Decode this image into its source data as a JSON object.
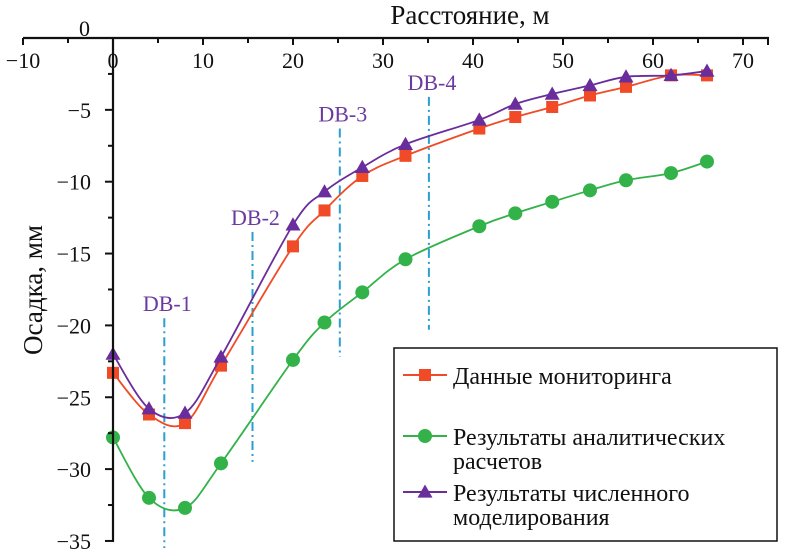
{
  "chart_data": {
    "type": "line",
    "title": "",
    "xlabel": "Расстояние, м",
    "ylabel": "Осадка, мм",
    "xlim": [
      -10,
      75
    ],
    "ylim": [
      -35,
      0
    ],
    "x_ticks": [
      -10,
      0,
      10,
      20,
      30,
      40,
      50,
      60,
      70
    ],
    "x_tick_labels": [
      "−10",
      "0",
      "10",
      "20",
      "30",
      "40",
      "50",
      "60",
      "70"
    ],
    "y_ticks": [
      0,
      -5,
      -10,
      -15,
      -20,
      -25,
      -30,
      -35
    ],
    "y_tick_labels": [
      "0",
      "−5",
      "−10",
      "−15",
      "−20",
      "−25",
      "−30",
      "−35"
    ],
    "grid": false,
    "legend_position": "bottom-right",
    "x": [
      0,
      4,
      8,
      12,
      20,
      23.5,
      27.7,
      32.5,
      40.7,
      44.7,
      48.8,
      53,
      57,
      62,
      66
    ],
    "series": [
      {
        "name": "Данные мониторинга",
        "color": "#f04a26",
        "marker": "square",
        "values": [
          -23.3,
          -26.2,
          -26.8,
          -22.8,
          -14.5,
          -12.0,
          -9.6,
          -8.2,
          -6.3,
          -5.5,
          -4.8,
          -4.0,
          -3.4,
          -2.6,
          -2.6
        ]
      },
      {
        "name": "Результаты аналитических расчетов",
        "legend_lines": [
          "Результаты аналитических",
          "расчетов"
        ],
        "color": "#33b24a",
        "marker": "circle",
        "values": [
          -27.8,
          -32.0,
          -32.7,
          -29.6,
          -22.4,
          -19.8,
          -17.7,
          -15.4,
          -13.1,
          -12.2,
          -11.4,
          -10.6,
          -9.9,
          -9.4,
          -8.6
        ]
      },
      {
        "name": "Результаты численного моделирования",
        "legend_lines": [
          "Результаты численного",
          "моделирования"
        ],
        "color": "#6a2d9c",
        "marker": "triangle",
        "values": [
          -22.0,
          -25.8,
          -26.1,
          -22.2,
          -13.0,
          -10.7,
          -9.0,
          -7.4,
          -5.7,
          -4.6,
          -3.9,
          -3.3,
          -2.7,
          -2.6,
          -2.3
        ]
      }
    ],
    "annotations": [
      {
        "label": "DB-1",
        "x": 5.7,
        "y_top": -19.5,
        "y_bottom": -35.5
      },
      {
        "label": "DB-2",
        "x": 15.5,
        "y_top": -13.5,
        "y_bottom": -29.5
      },
      {
        "label": "DB-3",
        "x": 25.2,
        "y_top": -6.3,
        "y_bottom": -22.2
      },
      {
        "label": "DB-4",
        "x": 35.1,
        "y_top": -4.1,
        "y_bottom": -20.3
      }
    ],
    "annotation_line_color": "#2a9fd0",
    "annotation_text_color": "#6a3aa0"
  }
}
